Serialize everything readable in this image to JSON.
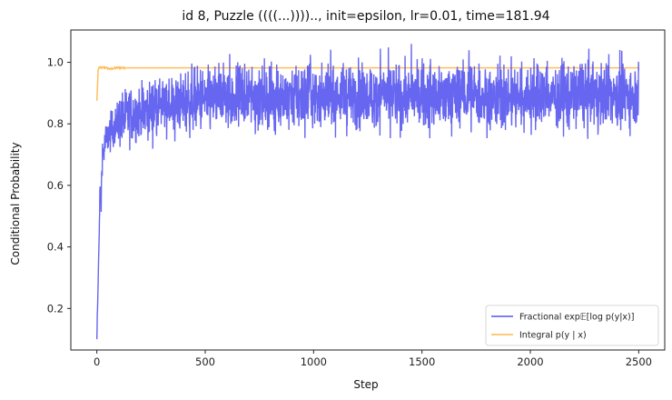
{
  "chart_data": {
    "type": "line",
    "title": "id 8, Puzzle ((((...)))).., init=epsilon, lr=0.01, time=181.94",
    "xlabel": "Step",
    "ylabel": "Conditional Probability",
    "xlim": [
      -120,
      2620
    ],
    "ylim": [
      0.065,
      1.105
    ],
    "xticks": [
      0,
      500,
      1000,
      1500,
      2000,
      2500
    ],
    "xtick_labels": [
      "0",
      "500",
      "1000",
      "1500",
      "2000",
      "2500"
    ],
    "yticks": [
      0.2,
      0.4,
      0.6,
      0.8,
      1.0
    ],
    "ytick_labels": [
      "0.2",
      "0.4",
      "0.6",
      "0.8",
      "1.0"
    ],
    "grid": false,
    "legend_position": "lower-right",
    "series": [
      {
        "name": "Fractional",
        "legend_label": "Fractional exp𝔼[log p(y|x)]",
        "color": "#5555ee",
        "description": "noisy series rising from 0.12 to about 0.88 by step 500, oscillating roughly between 0.72 and 1.05 afterwards",
        "x": [
          0,
          5,
          10,
          15,
          20,
          25,
          30,
          40,
          50,
          60,
          80,
          100,
          130,
          160,
          200,
          250,
          300,
          350,
          400,
          450,
          500,
          600,
          700,
          800,
          1000,
          1200,
          1500,
          1800,
          2000,
          2200,
          2350,
          2500
        ],
        "y": [
          0.115,
          0.25,
          0.41,
          0.6,
          0.55,
          0.71,
          0.7,
          0.74,
          0.76,
          0.77,
          0.79,
          0.81,
          0.82,
          0.83,
          0.84,
          0.85,
          0.86,
          0.865,
          0.87,
          0.875,
          0.88,
          0.885,
          0.885,
          0.885,
          0.89,
          0.89,
          0.89,
          0.89,
          0.89,
          0.895,
          0.895,
          0.9
        ]
      },
      {
        "name": "Integral",
        "legend_label": "Integral p(y | x)",
        "color": "#ffb74d",
        "description": "starts near 0.875 and jumps to about 0.98 almost immediately, then stays flat",
        "x": [
          0,
          3,
          6,
          10,
          40,
          60,
          100,
          120,
          300,
          500,
          1000,
          1500,
          2000,
          2500
        ],
        "y": [
          0.875,
          0.92,
          0.975,
          0.982,
          0.983,
          0.978,
          0.983,
          0.982,
          0.982,
          0.982,
          0.982,
          0.982,
          0.982,
          0.982
        ]
      }
    ]
  }
}
